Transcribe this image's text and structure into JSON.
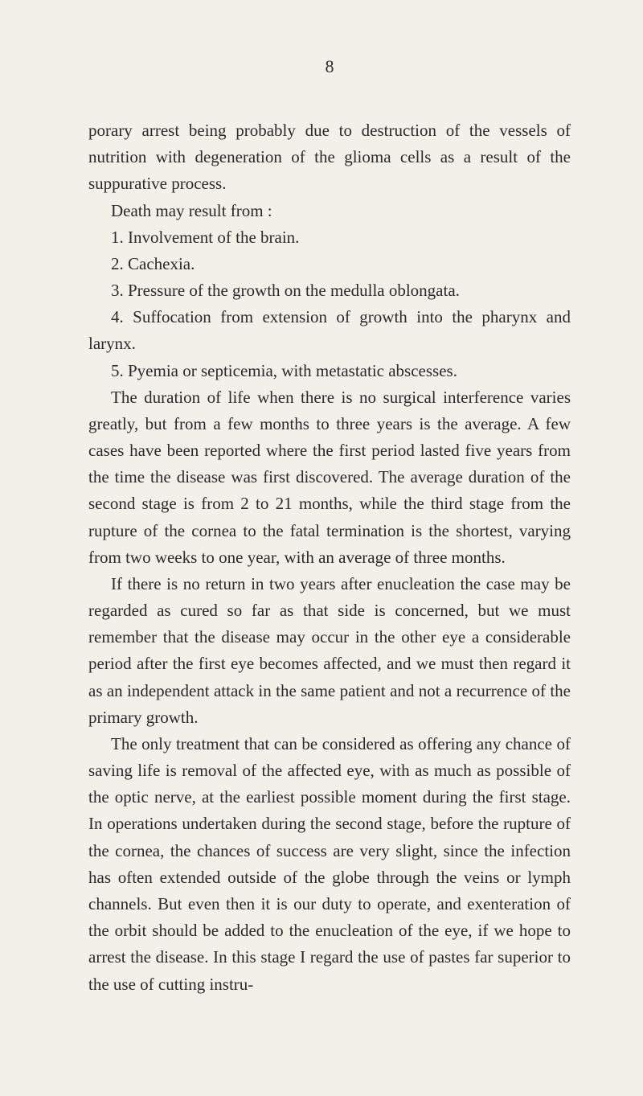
{
  "page_number": "8",
  "paragraphs": [
    {
      "text": "porary arrest being probably due to destruction of the vessels of nutrition with degeneration of the glioma cells as a result of the suppurative process.",
      "indent": false
    },
    {
      "text": "Death may result from :",
      "indent": true
    },
    {
      "text": "1. Involvement of the brain.",
      "indent": true
    },
    {
      "text": "2. Cachexia.",
      "indent": true
    },
    {
      "text": "3. Pressure of the growth on the medulla oblongata.",
      "indent": true
    },
    {
      "text": "4. Suffocation from extension of growth into the pharynx and larynx.",
      "indent": true
    },
    {
      "text": "5. Pyemia or septicemia, with metastatic abscesses.",
      "indent": true
    },
    {
      "text": "The duration of life when there is no surgical interference varies greatly, but from a few months to three years is the average. A few cases have been reported where the first period lasted five years from the time the disease was first discovered. The average duration of the second stage is from 2 to 21 months, while the third stage from the rupture of the cornea to the fatal termination is the shortest, varying from two weeks to one year, with an average of three months.",
      "indent": true
    },
    {
      "text": "If there is no return in two years after enucleation the case may be regarded as cured so far as that side is concerned, but we must remember that the disease may occur in the other eye a considerable period after the first eye becomes affected, and we must then regard it as an independent attack in the same patient and not a recurrence of the primary growth.",
      "indent": true
    },
    {
      "text": "The only treatment that can be considered as offering any chance of saving life is removal of the affected eye, with as much as possible of the optic nerve, at the earliest possible moment during the first stage. In operations undertaken during the second stage, before the rupture of the cornea, the chances of success are very slight, since the infection has often extended outside of the globe through the veins or lymph channels. But even then it is our duty to operate, and exenteration of the orbit should be added to the enucleation of the eye, if we hope to arrest the disease. In this stage I regard the use of pastes far superior to the use of cutting instru-",
      "indent": true
    }
  ],
  "colors": {
    "background": "#f2f0e8",
    "text": "#2a2a2a"
  },
  "typography": {
    "body_fontsize": 21,
    "page_number_fontsize": 22,
    "line_height": 1.58,
    "font_family": "Georgia, Times New Roman, serif"
  }
}
